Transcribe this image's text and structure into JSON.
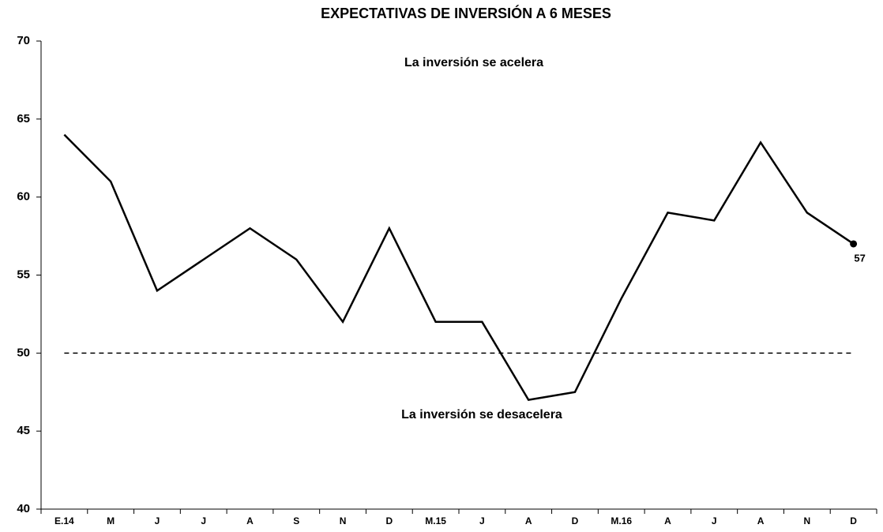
{
  "chart_data": {
    "type": "line",
    "title": "EXPECTATIVAS DE INVERSIÓN A 6 MESES",
    "categories": [
      "E.14",
      "M",
      "J",
      "J",
      "A",
      "S",
      "N",
      "D",
      "M.15",
      "J",
      "A",
      "D",
      "M.16",
      "A",
      "J",
      "A",
      "N",
      "D"
    ],
    "values": [
      64,
      61,
      54,
      56,
      58,
      56,
      52,
      58,
      52,
      52,
      47,
      47.5,
      53.5,
      59,
      58.5,
      63.5,
      59,
      57
    ],
    "color": "#000000",
    "ylim": [
      40,
      70
    ],
    "yticks": [
      40,
      45,
      50,
      55,
      60,
      65,
      70
    ],
    "reference_line": 50,
    "annotations": [
      "La inversión se acelera",
      "La inversión se desacelera"
    ]
  }
}
